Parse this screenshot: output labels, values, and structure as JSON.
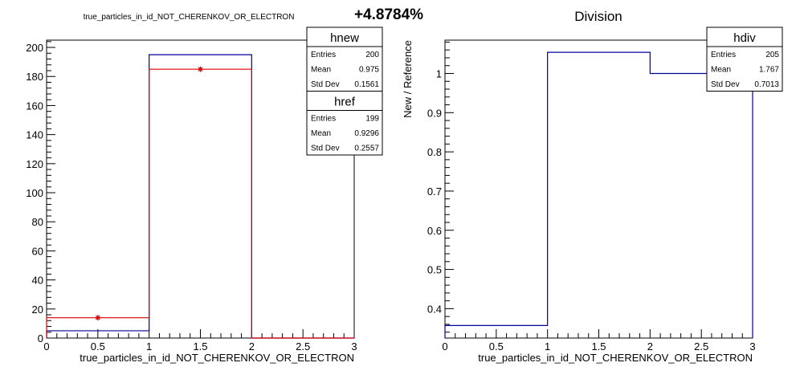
{
  "header": {
    "left_title": "true_particles_in_id_NOT_CHERENKOV_OR_ELECTRON",
    "diff_label": "+4.8784%",
    "right_title": "Division"
  },
  "chart_data": [
    {
      "type": "histogram",
      "title": "true_particles_in_id_NOT_CHERENKOV_OR_ELECTRON",
      "xlabel": "true_particles_in_id_NOT_CHERENKOV_OR_ELECTRON",
      "ylabel": "",
      "xlim": [
        0,
        3
      ],
      "ylim": [
        0,
        205
      ],
      "xticks": [
        0,
        0.5,
        1,
        1.5,
        2,
        2.5,
        3
      ],
      "yticks": [
        0,
        20,
        40,
        60,
        80,
        100,
        120,
        140,
        160,
        180,
        200
      ],
      "bin_edges": [
        0,
        1,
        2,
        3
      ],
      "series": [
        {
          "name": "hnew",
          "color": "#000099",
          "style": "step",
          "values": [
            5,
            195,
            0
          ]
        },
        {
          "name": "href",
          "color": "#dd0000",
          "style": "step-with-markers",
          "values": [
            14,
            185,
            0
          ]
        }
      ],
      "stats_boxes": [
        {
          "name": "hnew",
          "rows": [
            {
              "label": "Entries",
              "value": "200"
            },
            {
              "label": "Mean",
              "value": "0.975"
            },
            {
              "label": "Std Dev",
              "value": "0.1561"
            }
          ]
        },
        {
          "name": "href",
          "rows": [
            {
              "label": "Entries",
              "value": "199"
            },
            {
              "label": "Mean",
              "value": "0.9296"
            },
            {
              "label": "Std Dev",
              "value": "0.2557"
            }
          ]
        }
      ]
    },
    {
      "type": "histogram",
      "title": "Division",
      "xlabel": "true_particles_in_id_NOT_CHERENKOV_OR_ELECTRON",
      "ylabel": "New / Reference",
      "xlim": [
        0,
        3
      ],
      "ylim": [
        0.325,
        1.085
      ],
      "xticks": [
        0,
        0.5,
        1,
        1.5,
        2,
        2.5,
        3
      ],
      "yticks": [
        0.4,
        0.5,
        0.6,
        0.7,
        0.8,
        0.9,
        1
      ],
      "bin_edges": [
        0,
        1,
        2,
        3
      ],
      "series": [
        {
          "name": "hdiv",
          "color": "#000099",
          "style": "step",
          "values": [
            0.357,
            1.054,
            1.0
          ]
        }
      ],
      "stats_boxes": [
        {
          "name": "hdiv",
          "rows": [
            {
              "label": "Entries",
              "value": "205"
            },
            {
              "label": "Mean",
              "value": "1.767"
            },
            {
              "label": "Std Dev",
              "value": "0.7013"
            }
          ]
        }
      ]
    }
  ]
}
